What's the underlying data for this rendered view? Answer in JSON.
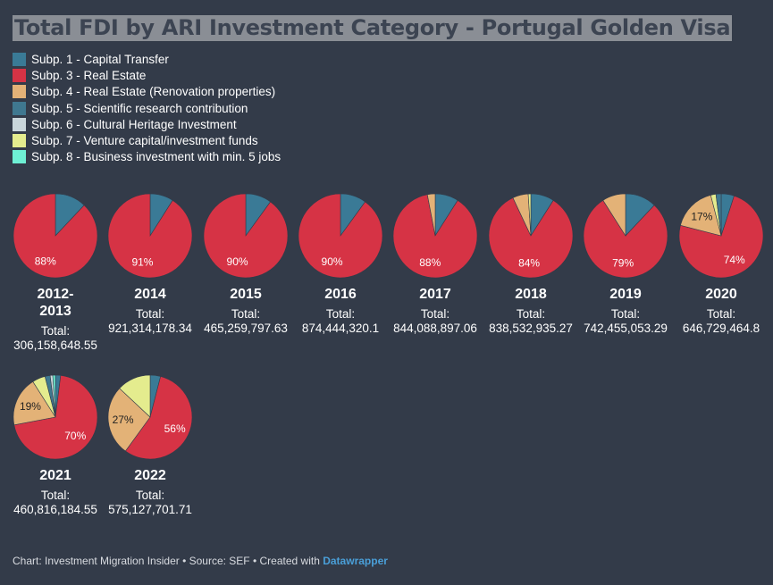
{
  "chart_data": {
    "type": "pie",
    "title": "Total FDI by ARI Investment Category - Portugal Golden Visa",
    "legend": [
      {
        "name": "Subp. 1 - Capital Transfer",
        "color": "#3a7a96"
      },
      {
        "name": "Subp. 3 - Real Estate",
        "color": "#d63345"
      },
      {
        "name": "Subp. 4 - Real Estate (Renovation properties)",
        "color": "#e3b277"
      },
      {
        "name": "Subp. 5 - Scientific research contribution",
        "color": "#3f7890"
      },
      {
        "name": "Subp. 6 - Cultural Heritage Investment",
        "color": "#c9d6db"
      },
      {
        "name": "Subp. 7 - Venture capital/investment funds",
        "color": "#e4ec8e"
      },
      {
        "name": "Subp. 8 - Business investment with min. 5 jobs",
        "color": "#6ef0d4"
      }
    ],
    "pies": [
      {
        "year": "2012-\n2013",
        "year_lines": [
          "2012-",
          "2013"
        ],
        "total_label": "Total:",
        "total": "306,158,648.55",
        "slices": [
          {
            "cat": 1,
            "value": 12
          },
          {
            "cat": 3,
            "value": 88
          }
        ],
        "labels": [
          {
            "cat": 3,
            "text": "88%"
          }
        ]
      },
      {
        "year": "2014",
        "year_lines": [
          "2014"
        ],
        "total_label": "Total:",
        "total": "921,314,178.34",
        "slices": [
          {
            "cat": 1,
            "value": 9
          },
          {
            "cat": 3,
            "value": 91
          }
        ],
        "labels": [
          {
            "cat": 3,
            "text": "91%"
          }
        ]
      },
      {
        "year": "2015",
        "year_lines": [
          "2015"
        ],
        "total_label": "Total:",
        "total": "465,259,797.63",
        "slices": [
          {
            "cat": 1,
            "value": 10
          },
          {
            "cat": 3,
            "value": 90
          }
        ],
        "labels": [
          {
            "cat": 3,
            "text": "90%"
          }
        ]
      },
      {
        "year": "2016",
        "year_lines": [
          "2016"
        ],
        "total_label": "Total:",
        "total": "874,444,320.1",
        "slices": [
          {
            "cat": 1,
            "value": 10
          },
          {
            "cat": 3,
            "value": 90
          }
        ],
        "labels": [
          {
            "cat": 3,
            "text": "90%"
          }
        ]
      },
      {
        "year": "2017",
        "year_lines": [
          "2017"
        ],
        "total_label": "Total:",
        "total": "844,088,897.06",
        "slices": [
          {
            "cat": 1,
            "value": 9
          },
          {
            "cat": 3,
            "value": 88
          },
          {
            "cat": 4,
            "value": 3
          }
        ],
        "labels": [
          {
            "cat": 3,
            "text": "88%"
          }
        ]
      },
      {
        "year": "2018",
        "year_lines": [
          "2018"
        ],
        "total_label": "Total:",
        "total": "838,532,935.27",
        "slices": [
          {
            "cat": 1,
            "value": 9
          },
          {
            "cat": 3,
            "value": 84
          },
          {
            "cat": 4,
            "value": 6
          },
          {
            "cat": 7,
            "value": 1
          }
        ],
        "labels": [
          {
            "cat": 3,
            "text": "84%"
          }
        ]
      },
      {
        "year": "2019",
        "year_lines": [
          "2019"
        ],
        "total_label": "Total:",
        "total": "742,455,053.29",
        "slices": [
          {
            "cat": 1,
            "value": 12
          },
          {
            "cat": 3,
            "value": 79
          },
          {
            "cat": 4,
            "value": 9
          }
        ],
        "labels": [
          {
            "cat": 3,
            "text": "79%"
          }
        ]
      },
      {
        "year": "2020",
        "year_lines": [
          "2020"
        ],
        "total_label": "Total:",
        "total": "646,729,464.8",
        "slices": [
          {
            "cat": 1,
            "value": 5
          },
          {
            "cat": 3,
            "value": 74
          },
          {
            "cat": 4,
            "value": 17
          },
          {
            "cat": 7,
            "value": 2
          },
          {
            "cat": 5,
            "value": 2
          }
        ],
        "labels": [
          {
            "cat": 3,
            "text": "74%"
          },
          {
            "cat": 4,
            "text": "17%"
          }
        ]
      },
      {
        "year": "2021",
        "year_lines": [
          "2021"
        ],
        "total_label": "Total:",
        "total": "460,816,184.55",
        "slices": [
          {
            "cat": 1,
            "value": 2
          },
          {
            "cat": 3,
            "value": 70
          },
          {
            "cat": 4,
            "value": 19
          },
          {
            "cat": 7,
            "value": 5
          },
          {
            "cat": 5,
            "value": 2
          },
          {
            "cat": 6,
            "value": 1
          },
          {
            "cat": 8,
            "value": 1
          }
        ],
        "labels": [
          {
            "cat": 3,
            "text": "70%"
          },
          {
            "cat": 4,
            "text": "19%"
          }
        ]
      },
      {
        "year": "2022",
        "year_lines": [
          "2022"
        ],
        "total_label": "Total:",
        "total": "575,127,701.71",
        "slices": [
          {
            "cat": 1,
            "value": 4
          },
          {
            "cat": 3,
            "value": 56
          },
          {
            "cat": 4,
            "value": 27
          },
          {
            "cat": 7,
            "value": 13
          }
        ],
        "labels": [
          {
            "cat": 3,
            "text": "56%"
          },
          {
            "cat": 4,
            "text": "27%"
          }
        ]
      }
    ]
  },
  "footer": {
    "text": "Chart: Investment Migration Insider • Source: SEF • Created with ",
    "brand": "Datawrapper"
  }
}
